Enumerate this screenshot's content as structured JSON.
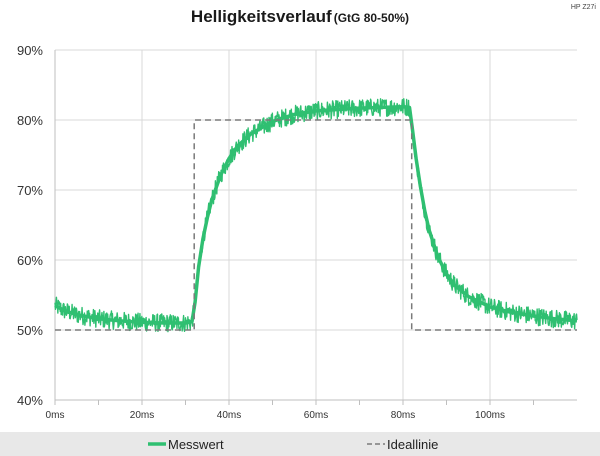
{
  "chart_data": {
    "type": "line",
    "title": "Helligkeitsverlauf",
    "subtitle": "(GtG 80-50%)",
    "model_label": "HP Z27i",
    "xlabel": "",
    "ylabel": "",
    "xlim": [
      0,
      120
    ],
    "ylim": [
      40,
      90
    ],
    "x_ticks": [
      0,
      20,
      40,
      60,
      80,
      100
    ],
    "x_tick_labels": [
      "0ms",
      "20ms",
      "40ms",
      "60ms",
      "80ms",
      "100ms"
    ],
    "y_ticks": [
      40,
      50,
      60,
      70,
      80,
      90
    ],
    "y_tick_labels": [
      "40%",
      "50%",
      "60%",
      "70%",
      "80%",
      "90%"
    ],
    "grid": true,
    "legend_position": "bottom",
    "series": [
      {
        "name": "Messwert",
        "color": "#2fbf71",
        "style": "solid",
        "x": [
          0,
          2,
          5,
          10,
          15,
          20,
          25,
          30,
          31.5,
          32.2,
          33,
          34,
          35,
          36,
          38,
          40,
          42,
          45,
          50,
          55,
          60,
          65,
          70,
          75,
          80,
          81.5,
          82.2,
          83,
          84,
          85,
          86,
          88,
          90,
          92,
          95,
          100,
          105,
          110,
          115,
          120
        ],
        "y": [
          53.5,
          52.8,
          52.2,
          51.6,
          51.3,
          51.1,
          51.0,
          51.0,
          51.2,
          54.0,
          59.0,
          63.0,
          66.0,
          68.5,
          72.0,
          74.5,
          76.3,
          78.0,
          79.8,
          80.8,
          81.3,
          81.5,
          81.7,
          81.8,
          81.9,
          81.8,
          78.5,
          74.5,
          70.5,
          67.0,
          64.3,
          60.5,
          58.0,
          56.3,
          54.8,
          53.3,
          52.5,
          52.0,
          51.6,
          51.3
        ]
      },
      {
        "name": "Ideallinie",
        "color": "#7a7a7a",
        "style": "dashed",
        "x": [
          0,
          32,
          32,
          82,
          82,
          120
        ],
        "y": [
          50,
          50,
          80,
          80,
          50,
          50
        ]
      }
    ]
  }
}
